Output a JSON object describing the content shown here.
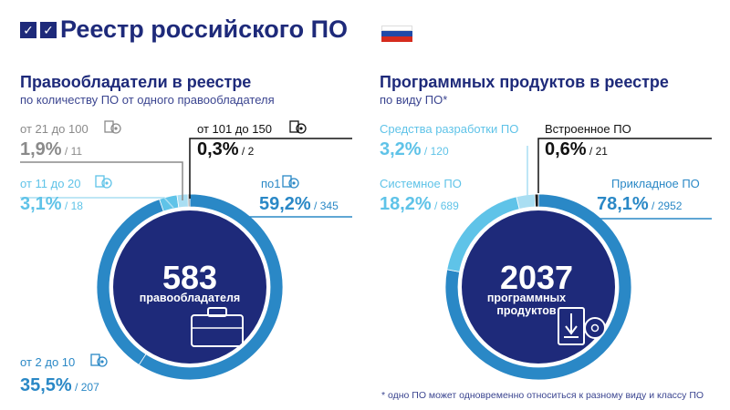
{
  "header": {
    "title": "Реестр российского ПО",
    "check_glyph": "✓",
    "flag_colors": [
      "#ffffff",
      "#1f4aa8",
      "#d52b1e"
    ]
  },
  "colors": {
    "navy": "#1e2a7a",
    "dark_blue": "#2a88c6",
    "light_blue": "#5fc3e8",
    "pale_blue": "#a9def2",
    "gray": "#8a8a8a",
    "black": "#111111"
  },
  "left": {
    "title": "Правообладатели в реестре",
    "subtitle": "по количеству ПО от одного правообладателя",
    "center_value": "583",
    "center_label": "правообладателя",
    "center_icon": "briefcase-icon"
  },
  "right": {
    "title": "Программных продуктов в реестре",
    "subtitle": "по виду ПО*",
    "center_value": "2037",
    "center_label_line1": "программных",
    "center_label_line2": "продуктов",
    "center_icon": "software-box-icon"
  },
  "footnote": "* одно ПО может одновременно относиться к разному виду и классу ПО",
  "chart_data": [
    {
      "type": "pie",
      "categories": [
        "по 1",
        "от 2 до 10",
        "от 11 до 20",
        "от 21 до 100",
        "от 101 до 150"
      ],
      "labels": [
        "по1",
        "от 2 до 10",
        "от 11 до 20",
        "от 21 до 100",
        "от 101 до 150"
      ],
      "percents": [
        "59,2%",
        "35,5%",
        "3,1%",
        "1,9%",
        "0,3%"
      ],
      "counts": [
        "345",
        "207",
        "18",
        "11",
        "2"
      ],
      "values": [
        59.2,
        35.5,
        3.1,
        1.9,
        0.3
      ],
      "colors": [
        "#2a88c6",
        "#2a88c6",
        "#5fc3e8",
        "#a9def2",
        "#8a8a8a"
      ],
      "total": 583
    },
    {
      "type": "pie",
      "categories": [
        "Прикладное ПО",
        "Системное ПО",
        "Средства разработки ПО",
        "Встроенное ПО"
      ],
      "labels": [
        "Прикладное ПО",
        "Системное ПО",
        "Средства разработки ПО",
        "Встроенное ПО"
      ],
      "percents": [
        "78,1%",
        "18,2%",
        "3,2%",
        "0,6%"
      ],
      "counts": [
        "2952",
        "689",
        "120",
        "21"
      ],
      "values": [
        78.1,
        18.2,
        3.2,
        0.6
      ],
      "colors": [
        "#2a88c6",
        "#5fc3e8",
        "#a9def2",
        "#1a1a1a"
      ],
      "total": 2037
    }
  ]
}
